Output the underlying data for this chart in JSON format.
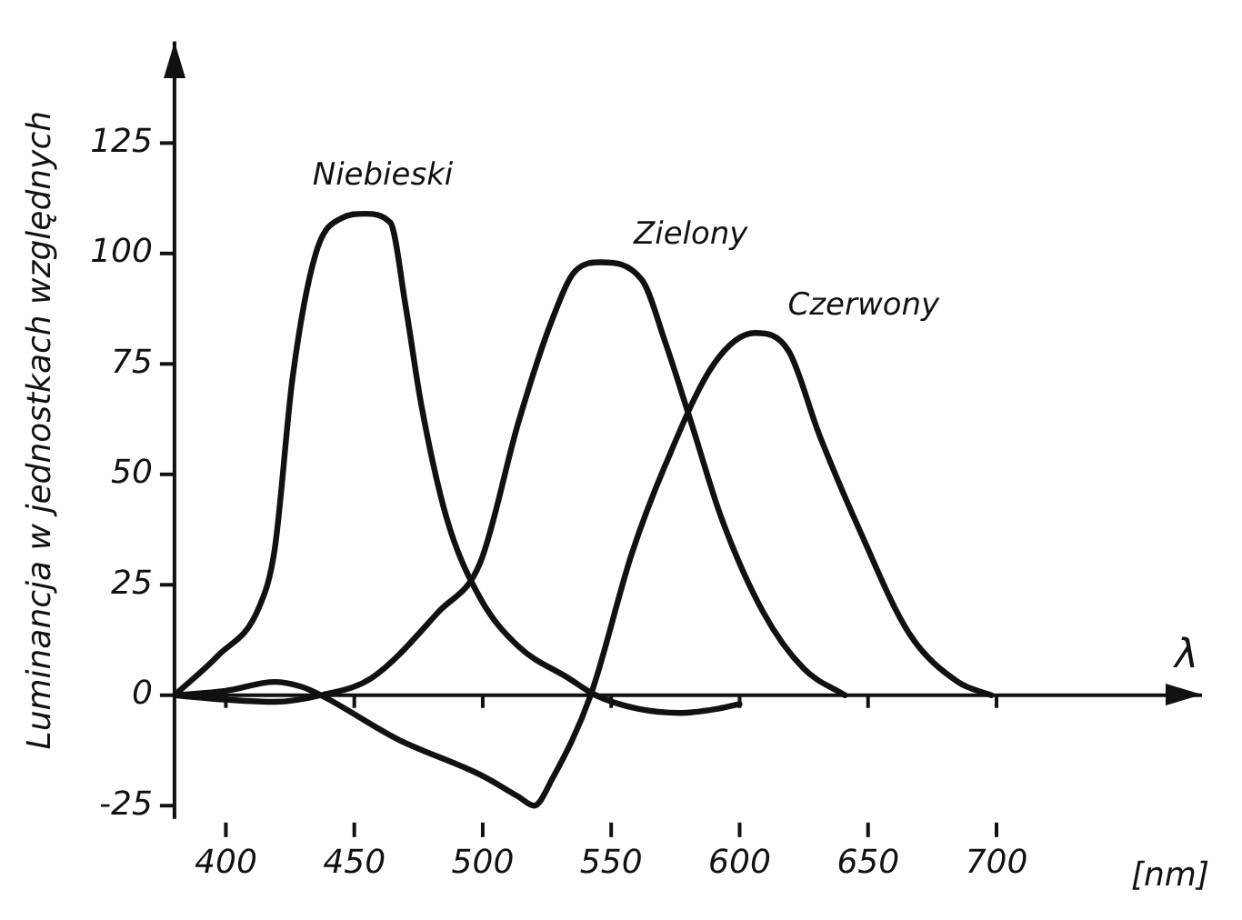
{
  "chart_data": {
    "type": "line",
    "xlabel": "[nm]",
    "ylabel": "Luminancja w jednostkach względnych",
    "annotations": [
      "λ"
    ],
    "xlim": [
      380,
      780
    ],
    "ylim": [
      -28,
      148
    ],
    "xticks": [
      400,
      450,
      500,
      550,
      600,
      650,
      700
    ],
    "yticks": [
      -25,
      0,
      25,
      50,
      75,
      100,
      125
    ],
    "grid": false,
    "ref_lines": [
      {
        "axis": "y",
        "value": 0
      }
    ],
    "legend": false,
    "marker": "none",
    "line_style": "solid",
    "series": [
      {
        "name": "Niebieski",
        "color": "#111111",
        "x": [
          380,
          397,
          413,
          419,
          426,
          435,
          445,
          454,
          464,
          470,
          476,
          486,
          499,
          514,
          533,
          544,
          560,
          577,
          592,
          600
        ],
        "values": [
          0,
          9,
          20,
          33,
          72,
          100,
          108,
          109,
          107,
          88,
          66,
          40,
          22,
          11,
          4,
          0,
          -3,
          -4,
          -3,
          -2
        ]
      },
      {
        "name": "Zielony",
        "color": "#111111",
        "x": [
          380,
          400,
          419,
          437,
          457,
          483,
          499,
          514,
          527,
          536,
          546,
          562,
          571,
          581,
          593,
          609,
          625,
          641
        ],
        "values": [
          0,
          -1,
          -1.5,
          0,
          4,
          19,
          30,
          62,
          85,
          96,
          98,
          94,
          80,
          62,
          40,
          19,
          6,
          0
        ]
      },
      {
        "name": "Czerwony",
        "color": "#111111",
        "x": [
          380,
          400,
          419,
          429,
          437,
          467,
          499,
          514,
          520,
          527,
          542,
          558,
          571,
          590,
          606,
          619,
          631,
          647,
          666,
          685,
          698
        ],
        "values": [
          0,
          1,
          3,
          2,
          0,
          -10,
          -18,
          -23,
          -25,
          -19,
          0,
          32,
          52,
          75,
          82,
          78,
          59,
          37,
          14,
          3,
          0
        ]
      }
    ]
  }
}
